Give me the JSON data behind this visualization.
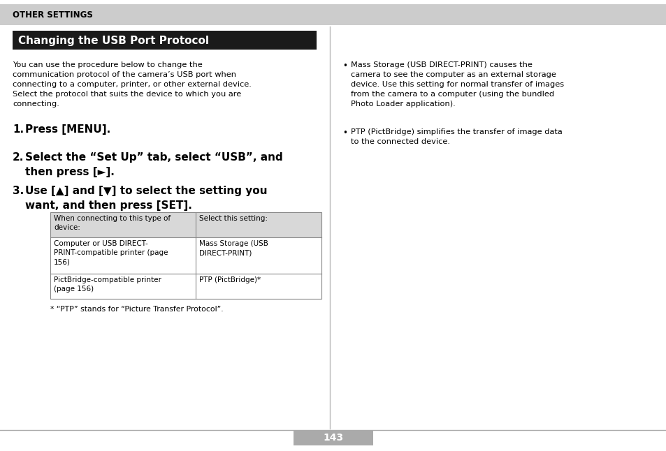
{
  "page_bg": "#ffffff",
  "header_bg": "#cccccc",
  "header_text": "OTHER SETTINGS",
  "header_text_color": "#000000",
  "title_bg": "#1a1a1a",
  "title_text": "Changing the USB Port Protocol",
  "title_text_color": "#ffffff",
  "body_text_left": "You can use the procedure below to change the\ncommunication protocol of the camera’s USB port when\nconnecting to a computer, printer, or other external device.\nSelect the protocol that suits the device to which you are\nconnecting.",
  "step1": "Press [MENU].",
  "step2": "Select the “Set Up” tab, select “USB”, and\nthen press [►].",
  "step3": "Use [▲] and [▼] to select the setting you\nwant, and then press [SET].",
  "table_header_col1": "When connecting to this type of\ndevice:",
  "table_header_col2": "Select this setting:",
  "table_row1_col1": "Computer or USB DIRECT-\nPRINT-compatible printer (page\n156)",
  "table_row1_col2": "Mass Storage (USB\nDIRECT-PRINT)",
  "table_row2_col1": "PictBridge-compatible printer\n(page 156)",
  "table_row2_col2": "PTP (PictBridge)*",
  "footnote": "* “PTP” stands for “Picture Transfer Protocol”.",
  "right_bullet1": "Mass Storage (USB DIRECT-PRINT) causes the\ncamera to see the computer as an external storage\ndevice. Use this setting for normal transfer of images\nfrom the camera to a computer (using the bundled\nPhoto Loader application).",
  "right_bullet2": "PTP (PictBridge) simplifies the transfer of image data\nto the connected device.",
  "page_number": "143",
  "table_border": "#888888",
  "table_header_bg": "#d8d8d8",
  "page_number_bg": "#aaaaaa",
  "page_number_color": "#ffffff",
  "divider_color": "#bbbbbb",
  "bottom_line_color": "#aaaaaa"
}
